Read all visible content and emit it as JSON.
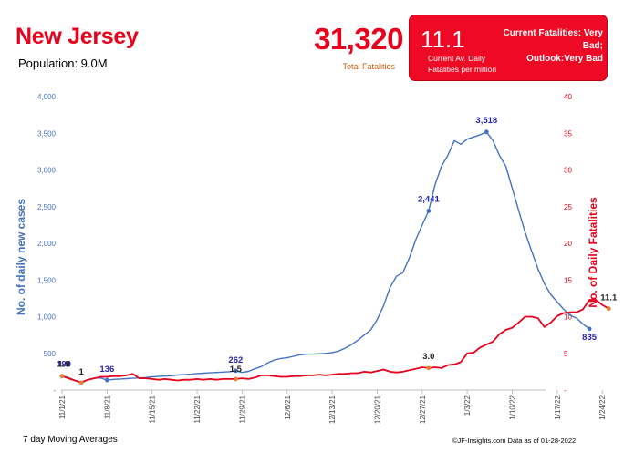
{
  "header": {
    "title": "New Jersey",
    "population": "Population: 9.0M",
    "total_fatalities": "31,320",
    "total_fatalities_label": "Total Fatalities"
  },
  "status_box": {
    "value": "11.1",
    "status_line1": "Current Fatalities: Very Bad;",
    "status_line2": "Outlook:Very Bad",
    "label_line1": "Current Av. Daily",
    "label_line2": "Fatalities per million"
  },
  "footer": {
    "left": "7 day Moving Averages",
    "right": "©JF-Insights.com  Data as of 01-28-2022"
  },
  "colors": {
    "cases": "#4472c4",
    "fatalities": "#e8001c",
    "title": "#e8001c"
  },
  "chart_data": {
    "type": "line",
    "title": "",
    "xlabel": "",
    "ylabel": "No. of daily new  cases",
    "y2label": "No. of Daily Fatalities",
    "ylim": [
      0,
      4000
    ],
    "y2lim": [
      0,
      40
    ],
    "y_ticks": [
      "-",
      "500",
      "1,000",
      "1,500",
      "2,000",
      "2,500",
      "3,000",
      "3,500",
      "4,000"
    ],
    "y2_ticks": [
      "-",
      "5",
      "10",
      "15",
      "20",
      "25",
      "30",
      "35",
      "40"
    ],
    "x_ticks": [
      "11/1/21",
      "11/8/21",
      "11/15/21",
      "11/22/21",
      "11/29/21",
      "12/6/21",
      "12/13/21",
      "12/20/21",
      "12/27/21",
      "1/3/22",
      "1/10/22",
      "1/17/22",
      "1/24/22"
    ],
    "x_start": "2021-11-01",
    "series": [
      {
        "name": "No. of daily new  cases",
        "axis": "left",
        "values": [
          190,
          170,
          130,
          110,
          140,
          160,
          165,
          136,
          145,
          150,
          155,
          160,
          165,
          170,
          180,
          185,
          190,
          195,
          205,
          210,
          215,
          225,
          230,
          235,
          240,
          245,
          250,
          262,
          240,
          255,
          290,
          320,
          370,
          410,
          430,
          440,
          460,
          480,
          490,
          490,
          495,
          500,
          510,
          530,
          570,
          620,
          680,
          750,
          820,
          960,
          1150,
          1400,
          1550,
          1600,
          1800,
          2050,
          2250,
          2441,
          2800,
          3050,
          3200,
          3400,
          3350,
          3420,
          3450,
          3480,
          3518,
          3400,
          3200,
          3050,
          2750,
          2450,
          2150,
          1900,
          1650,
          1450,
          1300,
          1200,
          1100,
          1020,
          980,
          900,
          835
        ]
      },
      {
        "name": "No. of Daily Fatalities",
        "axis": "right",
        "values": [
          1.9,
          1.6,
          1.3,
          1.0,
          1.4,
          1.6,
          1.8,
          1.8,
          1.9,
          1.9,
          2.0,
          2.2,
          1.6,
          1.6,
          1.5,
          1.4,
          1.5,
          1.4,
          1.3,
          1.4,
          1.4,
          1.5,
          1.4,
          1.5,
          1.4,
          1.5,
          1.5,
          1.5,
          1.6,
          1.5,
          1.7,
          2.0,
          2.0,
          1.9,
          1.8,
          1.8,
          1.9,
          1.9,
          2.0,
          2.0,
          2.1,
          2.0,
          2.1,
          2.2,
          2.2,
          2.3,
          2.3,
          2.5,
          2.4,
          2.6,
          2.8,
          2.5,
          2.4,
          2.5,
          2.7,
          2.9,
          3.1,
          3.0,
          3.1,
          3.0,
          3.4,
          3.5,
          3.8,
          5.0,
          5.1,
          5.8,
          6.2,
          6.6,
          7.6,
          8.2,
          8.5,
          9.2,
          10.0,
          10.0,
          9.8,
          8.6,
          9.2,
          10.1,
          10.5,
          10.6,
          10.6,
          11.0,
          12.3,
          12.3,
          11.6,
          11.1
        ]
      }
    ],
    "annotations": [
      {
        "series": 0,
        "index": 0,
        "label": "190"
      },
      {
        "series": 0,
        "index": 7,
        "label": "136"
      },
      {
        "series": 0,
        "index": 27,
        "label": "262"
      },
      {
        "series": 0,
        "index": 57,
        "label": "2,441"
      },
      {
        "series": 0,
        "index": 66,
        "label": "3,518"
      },
      {
        "series": 0,
        "index": 82,
        "label": "835"
      },
      {
        "series": 1,
        "index": 0,
        "label": "1.9"
      },
      {
        "series": 1,
        "index": 3,
        "label": "1"
      },
      {
        "series": 1,
        "index": 27,
        "label": "1.5"
      },
      {
        "series": 1,
        "index": 57,
        "label": "3.0"
      },
      {
        "series": 1,
        "index": 85,
        "label": "11.1"
      }
    ]
  }
}
